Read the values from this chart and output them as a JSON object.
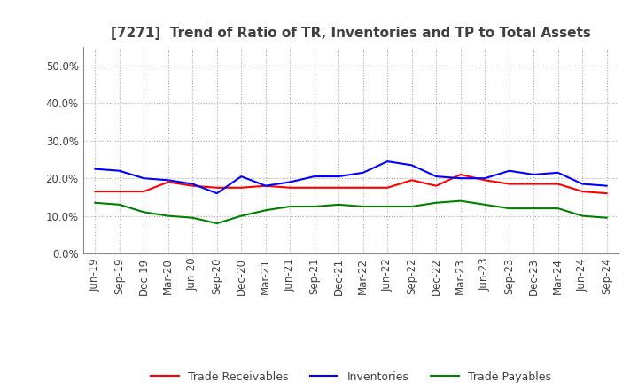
{
  "title": "[7271]  Trend of Ratio of TR, Inventories and TP to Total Assets",
  "labels": [
    "Jun-19",
    "Sep-19",
    "Dec-19",
    "Mar-20",
    "Jun-20",
    "Sep-20",
    "Dec-20",
    "Mar-21",
    "Jun-21",
    "Sep-21",
    "Dec-21",
    "Mar-22",
    "Jun-22",
    "Sep-22",
    "Dec-22",
    "Mar-23",
    "Jun-23",
    "Sep-23",
    "Dec-23",
    "Mar-24",
    "Jun-24",
    "Sep-24"
  ],
  "trade_receivables": [
    16.5,
    16.5,
    16.5,
    19.0,
    18.0,
    17.5,
    17.5,
    18.0,
    17.5,
    17.5,
    17.5,
    17.5,
    17.5,
    19.5,
    18.0,
    21.0,
    19.5,
    18.5,
    18.5,
    18.5,
    16.5,
    16.0
  ],
  "inventories": [
    22.5,
    22.0,
    20.0,
    19.5,
    18.5,
    16.0,
    20.5,
    18.0,
    19.0,
    20.5,
    20.5,
    21.5,
    24.5,
    23.5,
    20.5,
    20.0,
    20.0,
    22.0,
    21.0,
    21.5,
    18.5,
    18.0
  ],
  "trade_payables": [
    13.5,
    13.0,
    11.0,
    10.0,
    9.5,
    8.0,
    10.0,
    11.5,
    12.5,
    12.5,
    13.0,
    12.5,
    12.5,
    12.5,
    13.5,
    14.0,
    13.0,
    12.0,
    12.0,
    12.0,
    10.0,
    9.5
  ],
  "ylim": [
    0,
    55
  ],
  "yticks": [
    0,
    10,
    20,
    30,
    40,
    50
  ],
  "colors": {
    "trade_receivables": "#ff0000",
    "inventories": "#0000ff",
    "trade_payables": "#008000"
  },
  "background_color": "#ffffff",
  "plot_bg_color": "#ffffff",
  "grid_color": "#aaaaaa",
  "title_color": "#404040",
  "tick_label_color": "#404040",
  "legend_labels": [
    "Trade Receivables",
    "Inventories",
    "Trade Payables"
  ],
  "title_fontsize": 11,
  "tick_fontsize": 8.5,
  "legend_fontsize": 9
}
